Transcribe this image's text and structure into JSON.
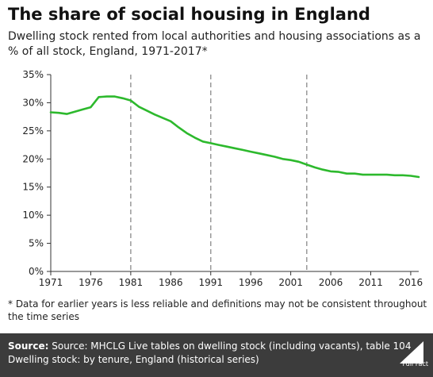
{
  "title": "The share of social housing in England",
  "subtitle": "Dwelling stock rented from local authorities and housing associations as a % of all stock, England, 1971-2017*",
  "footnote": "* Data for earlier years is less reliable and definitions may not be consistent throughout the time series",
  "footer": {
    "source_label": "Source:",
    "source_text": "Source: MHCLG Live tables on dwelling stock (including vacants), table 104",
    "line2": "Dwelling stock: by tenure, England (historical series)",
    "logo_text": "Full Fact"
  },
  "colors": {
    "line": "#2db92d",
    "footer_bg": "#3c3c3c",
    "grid_dash": "#999999"
  },
  "chart_data": {
    "type": "line",
    "title": "The share of social housing in England",
    "x_ticks": [
      1971,
      1976,
      1981,
      1986,
      1991,
      1996,
      2001,
      2006,
      2011,
      2016
    ],
    "y_ticks": [
      "0%",
      "5%",
      "10%",
      "15%",
      "20%",
      "25%",
      "30%",
      "35%"
    ],
    "xlim": [
      1971,
      2017
    ],
    "ylim": [
      0,
      35
    ],
    "grid": "dashed vertical reference lines",
    "vlines": [
      1981,
      1991,
      2003
    ],
    "series": [
      {
        "values": [
          [
            1971,
            28.3
          ],
          [
            1972,
            28.2
          ],
          [
            1973,
            28.0
          ],
          [
            1974,
            28.4
          ],
          [
            1975,
            28.8
          ],
          [
            1976,
            29.2
          ],
          [
            1977,
            31.0
          ],
          [
            1978,
            31.1
          ],
          [
            1979,
            31.1
          ],
          [
            1980,
            30.8
          ],
          [
            1981,
            30.4
          ],
          [
            1982,
            29.3
          ],
          [
            1983,
            28.6
          ],
          [
            1984,
            27.9
          ],
          [
            1985,
            27.3
          ],
          [
            1986,
            26.7
          ],
          [
            1987,
            25.6
          ],
          [
            1988,
            24.6
          ],
          [
            1989,
            23.8
          ],
          [
            1990,
            23.1
          ],
          [
            1991,
            22.8
          ],
          [
            1992,
            22.5
          ],
          [
            1993,
            22.2
          ],
          [
            1994,
            21.9
          ],
          [
            1995,
            21.6
          ],
          [
            1996,
            21.3
          ],
          [
            1997,
            21.0
          ],
          [
            1998,
            20.7
          ],
          [
            1999,
            20.4
          ],
          [
            2000,
            20.0
          ],
          [
            2001,
            19.8
          ],
          [
            2002,
            19.5
          ],
          [
            2003,
            19.0
          ],
          [
            2004,
            18.5
          ],
          [
            2005,
            18.1
          ],
          [
            2006,
            17.8
          ],
          [
            2007,
            17.7
          ],
          [
            2008,
            17.4
          ],
          [
            2009,
            17.4
          ],
          [
            2010,
            17.2
          ],
          [
            2011,
            17.2
          ],
          [
            2012,
            17.2
          ],
          [
            2013,
            17.2
          ],
          [
            2014,
            17.1
          ],
          [
            2015,
            17.1
          ],
          [
            2016,
            17.0
          ],
          [
            2017,
            16.8
          ]
        ]
      }
    ]
  }
}
